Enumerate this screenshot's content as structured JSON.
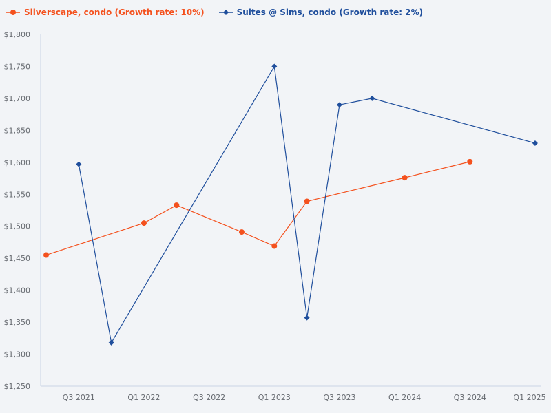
{
  "colors": {
    "background": "#f2f4f7",
    "axis": "#c9d3e6",
    "tick_text": "#666a70",
    "series_orange": "#f4511e",
    "series_blue": "#1f4e9c"
  },
  "legend": {
    "items": [
      {
        "label": "Silverscape, condo (Growth rate: 10%)",
        "color": "#f4511e",
        "marker": "circle"
      },
      {
        "label": "Suites @ Sims, condo (Growth rate: 2%)",
        "color": "#1f4e9c",
        "marker": "diamond"
      }
    ]
  },
  "chart_data": {
    "type": "line",
    "title": "",
    "xlabel": "",
    "ylabel": "",
    "ylim": [
      1250,
      1800
    ],
    "y_ticks": [
      1250,
      1300,
      1350,
      1400,
      1450,
      1500,
      1550,
      1600,
      1650,
      1700,
      1750,
      1800
    ],
    "y_tick_labels": [
      "$1,250",
      "$1,300",
      "$1,350",
      "$1,400",
      "$1,450",
      "$1,500",
      "$1,550",
      "$1,600",
      "$1,650",
      "$1,700",
      "$1,750",
      "$1,800"
    ],
    "categories": [
      "Q2 2021",
      "Q3 2021",
      "Q4 2021",
      "Q1 2022",
      "Q2 2022",
      "Q3 2022",
      "Q4 2022",
      "Q1 2023",
      "Q2 2023",
      "Q3 2023",
      "Q4 2023",
      "Q1 2024",
      "Q2 2024",
      "Q3 2024",
      "Q4 2024",
      "Q1 2025"
    ],
    "x_tick_labels": [
      "Q3 2021",
      "Q1 2022",
      "Q3 2022",
      "Q1 2023",
      "Q3 2023",
      "Q1 2024",
      "Q3 2024",
      "Q1 2025"
    ],
    "grid": false,
    "legend_position": "top-left",
    "series": [
      {
        "name": "Silverscape, condo (Growth rate: 10%)",
        "color": "#f4511e",
        "marker": "circle",
        "values": [
          1455,
          null,
          null,
          1505,
          1533,
          null,
          1491,
          1469,
          1539,
          null,
          null,
          1576,
          null,
          1601,
          null,
          null
        ]
      },
      {
        "name": "Suites @ Sims, condo (Growth rate: 2%)",
        "color": "#1f4e9c",
        "marker": "diamond",
        "values": [
          null,
          1597,
          1318,
          null,
          null,
          null,
          null,
          1750,
          1357,
          1690,
          1700,
          null,
          null,
          null,
          null,
          1630
        ]
      }
    ]
  }
}
